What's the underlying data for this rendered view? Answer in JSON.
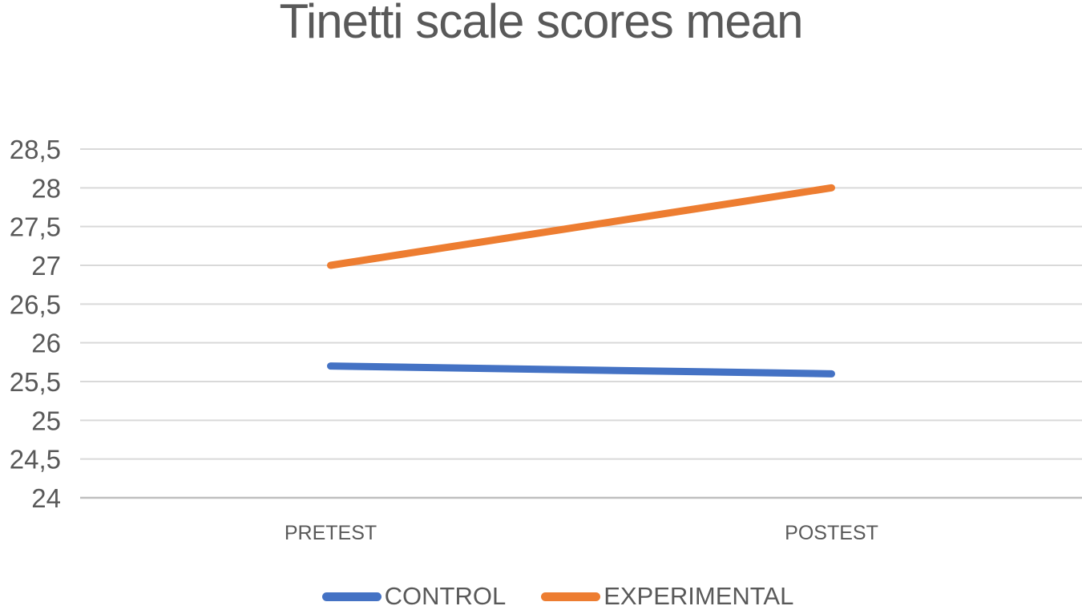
{
  "chart_data": {
    "type": "line",
    "title": "Tinetti scale scores mean",
    "categories": [
      "PRETEST",
      "POSTEST"
    ],
    "series": [
      {
        "name": "CONTROL",
        "values": [
          25.7,
          25.6
        ],
        "color": "#4472C4"
      },
      {
        "name": "EXPERIMENTAL",
        "values": [
          27.0,
          28.0
        ],
        "color": "#ED7D31"
      }
    ],
    "xlabel": "",
    "ylabel": "",
    "ylim": [
      24,
      28.5
    ],
    "ytick_step": 0.5,
    "yticks": [
      {
        "value": 28.5,
        "label": "28,5"
      },
      {
        "value": 28,
        "label": "28"
      },
      {
        "value": 27.5,
        "label": "27,5"
      },
      {
        "value": 27,
        "label": "27"
      },
      {
        "value": 26.5,
        "label": "26,5"
      },
      {
        "value": 26,
        "label": "26"
      },
      {
        "value": 25.5,
        "label": "25,5"
      },
      {
        "value": 25,
        "label": "25"
      },
      {
        "value": 24.5,
        "label": "24,5"
      },
      {
        "value": 24,
        "label": "24"
      }
    ],
    "decimal_separator": ",",
    "grid": "horizontal",
    "legend_position": "bottom",
    "colors": {
      "title_text": "#595959",
      "axis_text": "#595959",
      "gridline": "#D9D9D9",
      "axis_line": "#BFBFBF",
      "background": "#FFFFFF"
    }
  }
}
